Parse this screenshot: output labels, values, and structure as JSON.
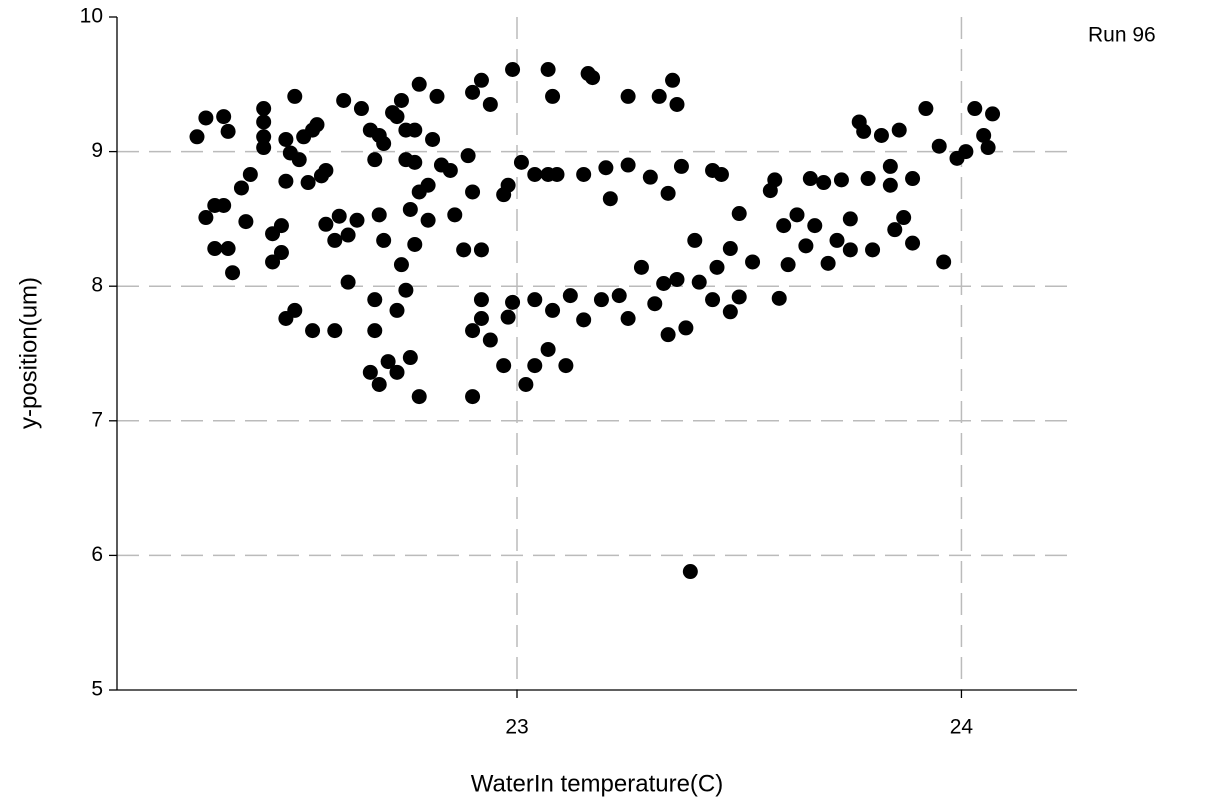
{
  "chart_data": {
    "type": "scatter",
    "annotation": "Run 96",
    "x_label": "WaterIn temperature(C)",
    "y_label": "y-position(um)",
    "xlim": [
      22.1,
      24.26
    ],
    "ylim": [
      5,
      10
    ],
    "xticks": [
      23,
      24
    ],
    "yticks": [
      5,
      6,
      7,
      8,
      9,
      10
    ],
    "grid": true,
    "color": "#000000",
    "x": [
      22.28,
      22.3,
      22.34,
      22.35,
      22.3,
      22.32,
      22.34,
      22.32,
      22.35,
      22.36,
      22.38,
      22.4,
      22.39,
      22.43,
      22.43,
      22.43,
      22.43,
      22.45,
      22.45,
      22.47,
      22.47,
      22.48,
      22.5,
      22.48,
      22.49,
      22.51,
      22.52,
      22.54,
      22.55,
      22.53,
      22.56,
      22.57,
      22.57,
      22.59,
      22.6,
      22.61,
      22.62,
      22.62,
      22.64,
      22.65,
      22.67,
      22.69,
      22.7,
      22.68,
      22.69,
      22.7,
      22.72,
      22.73,
      22.74,
      22.75,
      22.75,
      22.77,
      22.77,
      22.78,
      22.76,
      22.77,
      22.74,
      22.75,
      22.73,
      22.68,
      22.68,
      22.59,
      22.54,
      22.5,
      22.48,
      22.67,
      22.69,
      22.71,
      22.73,
      22.76,
      22.78,
      22.8,
      22.8,
      22.81,
      22.82,
      22.83,
      22.85,
      22.86,
      22.88,
      22.89,
      22.9,
      22.92,
      22.92,
      22.94,
      22.9,
      22.78,
      22.9,
      22.9,
      22.92,
      22.92,
      22.94,
      22.97,
      22.98,
      22.99,
      22.98,
      22.97,
      22.99,
      23.01,
      23.04,
      23.07,
      23.09,
      23.07,
      23.08,
      23.16,
      23.17,
      23.15,
      23.2,
      23.21,
      23.25,
      23.25,
      23.3,
      23.32,
      23.35,
      23.36,
      23.37,
      23.34,
      23.02,
      23.04,
      23.04,
      23.07,
      23.08,
      23.11,
      23.12,
      23.15,
      23.19,
      23.23,
      23.25,
      23.28,
      23.31,
      23.33,
      23.34,
      23.36,
      23.38,
      23.4,
      23.41,
      23.44,
      23.45,
      23.44,
      23.46,
      23.48,
      23.5,
      23.5,
      23.48,
      23.53,
      23.57,
      23.58,
      23.59,
      23.61,
      23.6,
      23.63,
      23.65,
      23.67,
      23.66,
      23.69,
      23.73,
      23.7,
      23.72,
      23.75,
      23.75,
      23.77,
      23.78,
      23.79,
      23.8,
      23.82,
      23.84,
      23.84,
      23.86,
      23.85,
      23.87,
      23.89,
      23.89,
      23.92,
      23.95,
      23.96,
      23.99,
      24.01,
      24.03,
      24.05,
      24.06,
      24.07,
      23.39
    ],
    "values": [
      9.11,
      9.25,
      9.26,
      9.15,
      8.51,
      8.6,
      8.6,
      8.28,
      8.28,
      8.1,
      8.73,
      8.83,
      8.48,
      9.32,
      9.22,
      9.11,
      9.03,
      8.39,
      8.18,
      8.45,
      8.25,
      9.09,
      9.41,
      8.78,
      8.99,
      8.94,
      9.11,
      9.16,
      9.2,
      8.77,
      8.82,
      8.86,
      8.46,
      8.34,
      8.52,
      9.38,
      8.38,
      8.03,
      8.49,
      9.32,
      9.16,
      9.12,
      9.06,
      8.94,
      8.53,
      8.34,
      9.29,
      9.26,
      9.38,
      9.16,
      8.94,
      9.16,
      8.92,
      9.5,
      8.57,
      8.31,
      8.16,
      7.97,
      7.82,
      7.9,
      7.67,
      7.67,
      7.67,
      7.82,
      7.76,
      7.36,
      7.27,
      7.44,
      7.36,
      7.47,
      8.7,
      8.75,
      8.49,
      9.09,
      9.41,
      8.9,
      8.86,
      8.53,
      8.27,
      8.97,
      8.7,
      8.27,
      9.53,
      9.35,
      9.44,
      7.18,
      7.18,
      7.67,
      7.9,
      7.76,
      7.6,
      7.41,
      7.77,
      7.88,
      8.75,
      8.68,
      9.61,
      8.92,
      8.83,
      8.83,
      8.83,
      9.61,
      9.41,
      9.58,
      9.55,
      8.83,
      8.88,
      8.65,
      9.41,
      8.9,
      8.81,
      9.41,
      9.53,
      9.35,
      8.89,
      8.69,
      7.27,
      7.41,
      7.9,
      7.53,
      7.82,
      7.41,
      7.93,
      7.75,
      7.9,
      7.93,
      7.76,
      8.14,
      7.87,
      8.02,
      7.64,
      8.05,
      7.69,
      8.34,
      8.03,
      7.9,
      8.14,
      8.86,
      8.83,
      8.28,
      8.54,
      7.92,
      7.81,
      8.18,
      8.71,
      8.79,
      7.91,
      8.16,
      8.45,
      8.53,
      8.3,
      8.45,
      8.8,
      8.77,
      8.79,
      8.17,
      8.34,
      8.5,
      8.27,
      9.22,
      9.15,
      8.8,
      8.27,
      9.12,
      8.75,
      8.89,
      9.16,
      8.42,
      8.51,
      8.8,
      8.32,
      9.32,
      9.04,
      8.18,
      8.95,
      9.0,
      9.32,
      9.12,
      9.03,
      9.28,
      5.88
    ]
  }
}
